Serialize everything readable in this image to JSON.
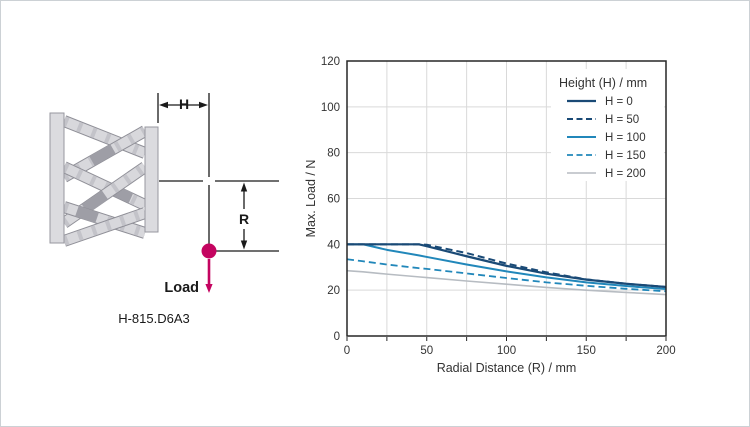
{
  "page": {
    "background": "#ffffff",
    "border_color": "#ccd1d5"
  },
  "diagram": {
    "model_label": "H-815.D6A3",
    "dim_h_label": "H",
    "dim_r_label": "R",
    "load_label": "Load",
    "load_color": "#c40460",
    "plate_fill": "#dbdbdf",
    "plate_stroke": "#97979f",
    "strut_outline": "#8f8f97",
    "strut_body": "#d8d8dc",
    "strut_band": "#c3c3c9",
    "strut_accent": "#9e9ea6",
    "dim_line_color": "#1a1a1a"
  },
  "chart_data": {
    "type": "line",
    "title": "",
    "xlabel": "Radial Distance (R) / mm",
    "ylabel": "Max. Load / N",
    "xlim": [
      0,
      200
    ],
    "ylim": [
      0,
      120
    ],
    "xticks": [
      0,
      50,
      100,
      150,
      200
    ],
    "yticks": [
      0,
      20,
      40,
      60,
      80,
      100,
      120
    ],
    "x_grid_step": 25,
    "y_grid_step": 20,
    "grid": true,
    "grid_color": "#d9d9d9",
    "frame_color": "#262626",
    "text_color": "#333333",
    "legend_title": "Height (H) / mm",
    "legend_position": "top-right-inside",
    "x": [
      0,
      10,
      25,
      45,
      50,
      75,
      100,
      125,
      150,
      175,
      200
    ],
    "series": [
      {
        "name": "H = 0",
        "style": "solid",
        "color": "#1a4a76",
        "width": 2.2,
        "values": [
          40,
          40,
          40,
          40,
          39.2,
          34.8,
          30.6,
          27.2,
          24.6,
          22.8,
          21.4
        ]
      },
      {
        "name": "H = 50",
        "style": "dashed",
        "color": "#1a4a76",
        "width": 2.0,
        "values": [
          40,
          40,
          40,
          40,
          39.8,
          36.2,
          31.6,
          27.8,
          24.7,
          22.8,
          21.4
        ]
      },
      {
        "name": "H = 100",
        "style": "solid",
        "color": "#2187ba",
        "width": 2.0,
        "values": [
          40,
          40,
          37.6,
          35.2,
          34.5,
          31.2,
          28.2,
          25.6,
          23.4,
          21.8,
          20.5
        ]
      },
      {
        "name": "H = 150",
        "style": "dashed",
        "color": "#2187ba",
        "width": 1.8,
        "values": [
          33.5,
          32.6,
          31.2,
          29.6,
          29.3,
          27.3,
          25.3,
          23.4,
          21.9,
          20.6,
          19.5
        ]
      },
      {
        "name": "H = 200",
        "style": "solid",
        "color": "#b7bcc2",
        "width": 1.6,
        "values": [
          28.5,
          28,
          27,
          25.8,
          25.5,
          24,
          22.6,
          21.2,
          20,
          19,
          18.1
        ]
      }
    ]
  }
}
